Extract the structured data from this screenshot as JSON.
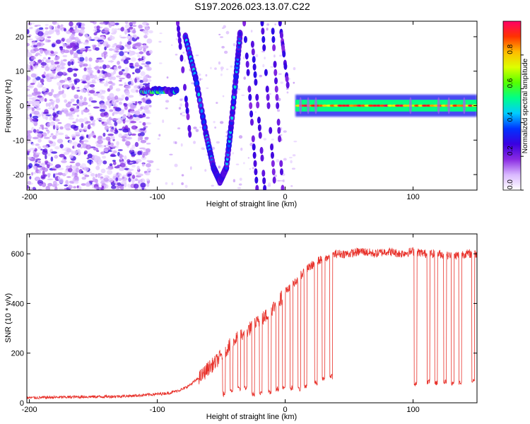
{
  "title": "S197.2026.023.13.07.C22",
  "chart_data": [
    {
      "type": "heatmap",
      "xlabel": "Height of straight line (km)",
      "ylabel": "Frequency (Hz)",
      "xlim": [
        -202,
        150
      ],
      "ylim": [
        -24.5,
        24.5
      ],
      "x_ticks": [
        -200,
        -100,
        0,
        100
      ],
      "y_ticks": [
        20,
        10,
        0,
        -10,
        -20
      ],
      "colorbar": {
        "label": "Normalized spectral amplitude",
        "range": [
          0,
          1
        ],
        "ticks": [
          "0.0",
          "0.2",
          "0.4",
          "0.6",
          "0.8"
        ],
        "colors": [
          "#ffffff",
          "#d9b8ff",
          "#8a2be2",
          "#3a00e0",
          "#0033ff",
          "#00ccff",
          "#00ff88",
          "#55ff00",
          "#ddff00",
          "#ffbb00",
          "#ff3300",
          "#ff0066"
        ]
      },
      "features": [
        {
          "name": "background noise speckle",
          "x_range": [
            -202,
            -105
          ],
          "y_range": [
            -24.5,
            24.5
          ],
          "amplitude": 0.1
        },
        {
          "name": "short segment near 4 Hz",
          "x_range": [
            -112,
            -85
          ],
          "y": 4,
          "amplitude": 0.45
        },
        {
          "name": "V-shaped curve",
          "points": [
            [
              -78,
              20
            ],
            [
              -70,
              8
            ],
            [
              -62,
              -8
            ],
            [
              -56,
              -18
            ],
            [
              -51,
              -22
            ],
            [
              -46,
              -18
            ],
            [
              -42,
              -5
            ],
            [
              -38,
              10
            ],
            [
              -35,
              22
            ]
          ],
          "amplitude": 0.4
        },
        {
          "name": "steady line at 0 Hz",
          "x_range": [
            8,
            150
          ],
          "y": 0,
          "amplitude": 0.95
        }
      ]
    },
    {
      "type": "line",
      "xlabel": "Height of straight line (km)",
      "ylabel": "SNR (10 * v/v)",
      "xlim": [
        -202,
        150
      ],
      "ylim": [
        0,
        680
      ],
      "x_ticks": [
        -200,
        -100,
        0,
        100
      ],
      "y_ticks": [
        0,
        200,
        400,
        600
      ],
      "color": "#e8312a",
      "x": [
        -202,
        -180,
        -160,
        -140,
        -120,
        -100,
        -90,
        -80,
        -75,
        -70,
        -65,
        -60,
        -55,
        -50,
        -45,
        -40,
        -35,
        -30,
        -25,
        -20,
        -15,
        -10,
        -5,
        0,
        5,
        10,
        15,
        20,
        25,
        30,
        35,
        40,
        50,
        60,
        70,
        80,
        90,
        100,
        110,
        120,
        130,
        140,
        150
      ],
      "values": [
        20,
        22,
        24,
        25,
        28,
        35,
        40,
        55,
        70,
        90,
        110,
        140,
        160,
        190,
        220,
        250,
        270,
        290,
        310,
        330,
        350,
        380,
        410,
        440,
        470,
        500,
        530,
        550,
        570,
        580,
        590,
        600,
        600,
        610,
        600,
        610,
        600,
        610,
        600,
        600,
        590,
        600,
        600
      ],
      "dropouts": [
        {
          "x": -48,
          "value": 35
        },
        {
          "x": -42,
          "value": 50
        },
        {
          "x": -36,
          "value": 55
        },
        {
          "x": -31,
          "value": 60
        },
        {
          "x": -25,
          "value": 35
        },
        {
          "x": -19,
          "value": 40
        },
        {
          "x": -12,
          "value": 45
        },
        {
          "x": -6,
          "value": 55
        },
        {
          "x": -1,
          "value": 60
        },
        {
          "x": 5,
          "value": 60
        },
        {
          "x": 11,
          "value": 55
        },
        {
          "x": 16,
          "value": 65
        },
        {
          "x": 24,
          "value": 80
        },
        {
          "x": 30,
          "value": 95
        },
        {
          "x": 36,
          "value": 105
        },
        {
          "x": 102,
          "value": 75
        },
        {
          "x": 112,
          "value": 85
        },
        {
          "x": 118,
          "value": 80
        },
        {
          "x": 125,
          "value": 85
        },
        {
          "x": 131,
          "value": 80
        },
        {
          "x": 137,
          "value": 80
        },
        {
          "x": 147,
          "value": 90
        }
      ]
    }
  ]
}
